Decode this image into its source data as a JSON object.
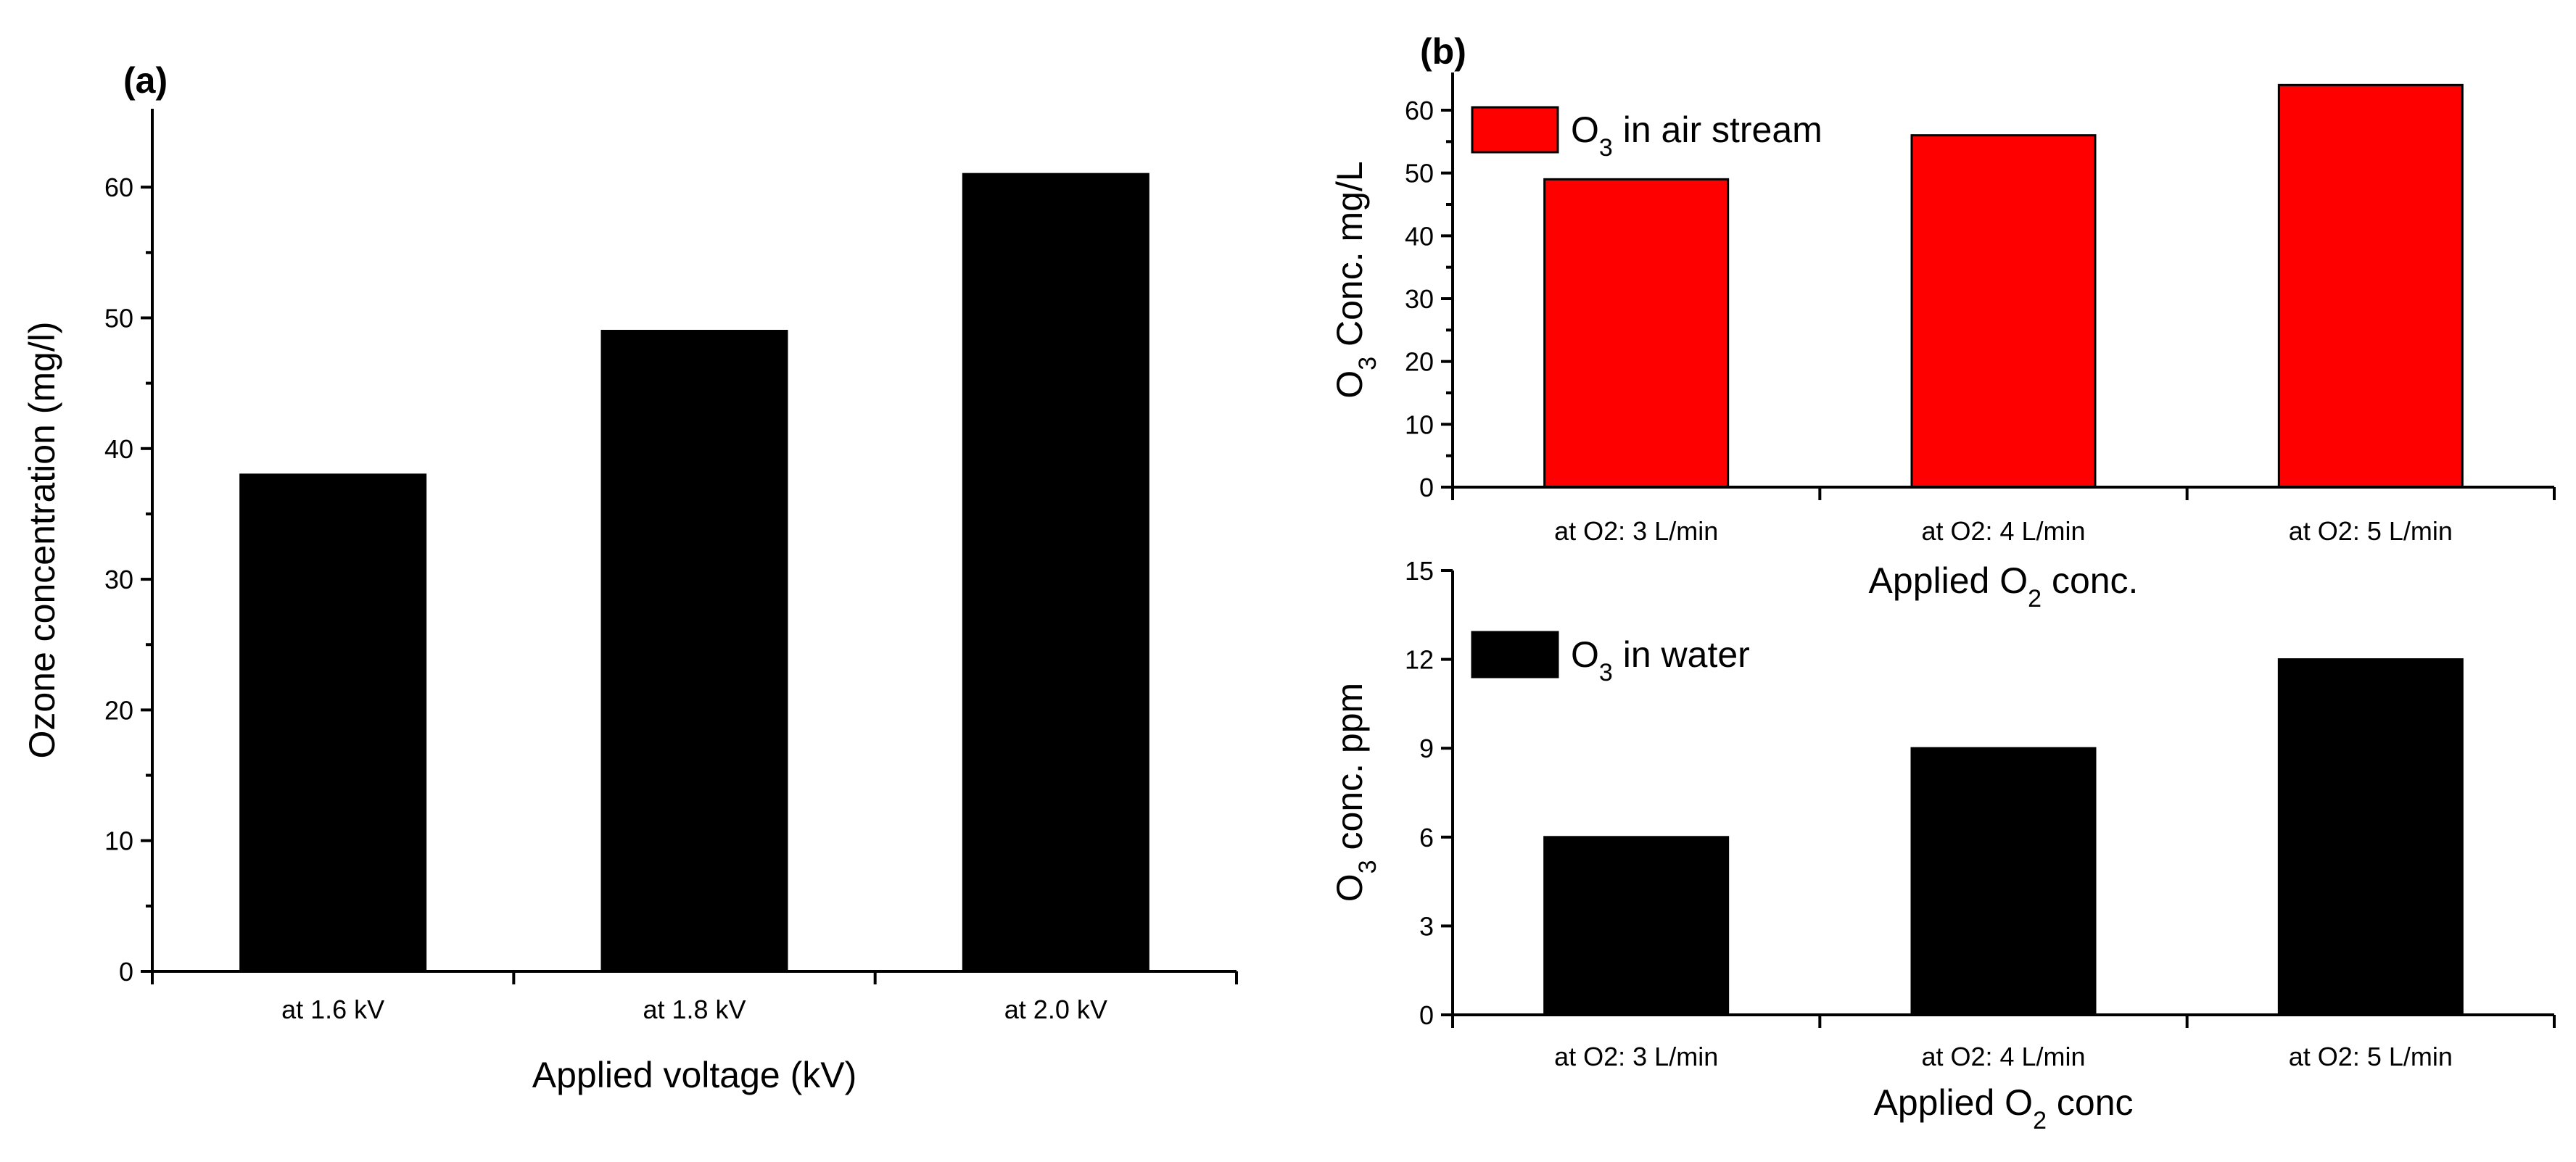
{
  "chart_data": [
    {
      "id": "a",
      "type": "bar",
      "panel_label": "(a)",
      "categories": [
        "at 1.6 kV",
        "at 1.8 kV",
        "at 2.0 kV"
      ],
      "values": [
        38,
        49,
        61
      ],
      "xlabel": "Applied voltage (kV)",
      "ylabel": "Ozone concentration (mg/l)",
      "ylim": [
        0,
        66
      ],
      "yticks": [
        0,
        10,
        20,
        30,
        40,
        50,
        60
      ],
      "bar_color": "#000000",
      "grid": false
    },
    {
      "id": "b_top",
      "type": "bar",
      "panel_label": "(b)",
      "categories": [
        "at O2: 3 L/min",
        "at O2: 4 L/min",
        "at O2: 5 L/min"
      ],
      "values": [
        49,
        56,
        64
      ],
      "xlabel_parts": [
        "Applied O",
        "2",
        " conc."
      ],
      "ylabel_parts": [
        "O",
        "3",
        " Conc. mg/L"
      ],
      "legend": {
        "parts": [
          "O",
          "3",
          " in air stream"
        ],
        "position": "top-left"
      },
      "ylim": [
        0,
        66
      ],
      "yticks": [
        0,
        10,
        20,
        30,
        40,
        50,
        60
      ],
      "bar_color": "#ff0000",
      "grid": false
    },
    {
      "id": "b_bottom",
      "type": "bar",
      "categories": [
        "at O2: 3 L/min",
        "at O2: 4 L/min",
        "at O2: 5 L/min"
      ],
      "values": [
        6,
        9,
        12
      ],
      "xlabel_parts": [
        "Applied O",
        "2",
        " conc"
      ],
      "ylabel_parts": [
        "O",
        "3",
        " conc. ppm"
      ],
      "legend": {
        "parts": [
          "O",
          "3",
          " in water"
        ],
        "position": "top-left"
      },
      "ylim": [
        0,
        15
      ],
      "yticks": [
        0,
        3,
        6,
        9,
        12,
        15
      ],
      "bar_color": "#000000",
      "grid": false
    }
  ]
}
